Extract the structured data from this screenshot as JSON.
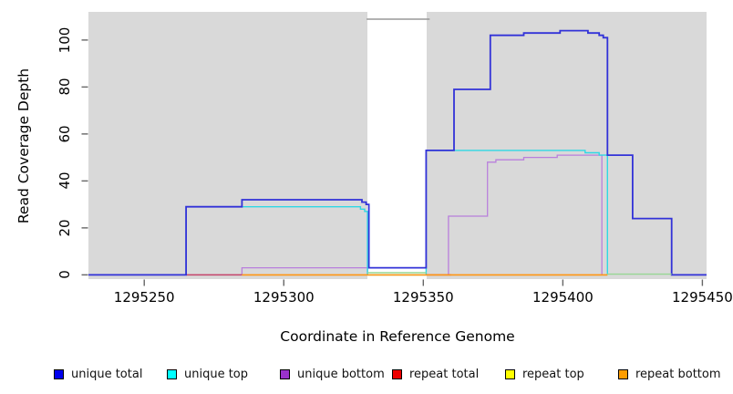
{
  "chart_data": {
    "type": "line",
    "subtype": "step-coverage",
    "title": "",
    "xlabel": "Coordinate in Reference Genome",
    "ylabel": "Read Coverage Depth",
    "xlim": [
      1295230,
      1295451.5
    ],
    "ylim": [
      -1.8,
      112
    ],
    "x_ticks": [
      1295250,
      1295300,
      1295350,
      1295400,
      1295450
    ],
    "y_ticks": [
      0,
      20,
      40,
      60,
      80,
      100
    ],
    "panel_background": "#d9d9d9",
    "gap_region": {
      "start": 1295330,
      "end": 1295351.3,
      "top_border_color": "#999999"
    },
    "grid": false,
    "legend_position": "bottom",
    "series": [
      {
        "name": "unique bottom left",
        "legend": "unique bottom",
        "color": "#b97fdc",
        "width": 1.3,
        "points": [
          [
            1295285,
            0
          ],
          [
            1295285,
            3
          ],
          [
            1295330,
            3
          ],
          [
            1295330,
            0
          ]
        ]
      },
      {
        "name": "unique bottom right",
        "legend": "unique bottom",
        "color": "#b97fdc",
        "width": 1.3,
        "points": [
          [
            1295359,
            0
          ],
          [
            1295359,
            25
          ],
          [
            1295373,
            25
          ],
          [
            1295373,
            48
          ],
          [
            1295376,
            48
          ],
          [
            1295376,
            49
          ],
          [
            1295386,
            49
          ],
          [
            1295386,
            50
          ],
          [
            1295398,
            50
          ],
          [
            1295398,
            51
          ],
          [
            1295414,
            51
          ],
          [
            1295414,
            0
          ]
        ]
      },
      {
        "name": "unique top",
        "legend": "unique top",
        "color": "#2fd8e4",
        "width": 1.4,
        "points": [
          [
            1295265,
            0
          ],
          [
            1295265,
            29
          ],
          [
            1295327.5,
            29
          ],
          [
            1295327.5,
            28
          ],
          [
            1295329,
            28
          ],
          [
            1295329,
            27
          ],
          [
            1295330,
            27
          ],
          [
            1295330,
            0
          ],
          [
            1295351,
            0
          ],
          [
            1295351,
            53
          ],
          [
            1295408,
            53
          ],
          [
            1295408,
            52
          ],
          [
            1295413,
            52
          ],
          [
            1295413,
            51
          ],
          [
            1295416,
            51
          ],
          [
            1295416,
            0
          ]
        ]
      },
      {
        "name": "repeat total seg1",
        "legend": "repeat total",
        "color": "#c4436a",
        "width": 1.5,
        "points": [
          [
            1295265,
            0
          ],
          [
            1295285,
            0
          ]
        ]
      },
      {
        "name": "repeat total seg2",
        "legend": "repeat total",
        "color": "#c4436a",
        "width": 1.5,
        "points": [
          [
            1295351,
            0
          ],
          [
            1295360,
            0
          ]
        ]
      },
      {
        "name": "repeat bottom",
        "legend": "repeat bottom",
        "color": "#ff9612",
        "width": 1.6,
        "points": [
          [
            1295285,
            0
          ],
          [
            1295416,
            0
          ]
        ]
      },
      {
        "name": "unique total",
        "legend": "unique total",
        "color": "#3232d8",
        "width": 1.8,
        "points": [
          [
            1295230,
            0
          ],
          [
            1295265,
            0
          ],
          [
            1295265,
            29
          ],
          [
            1295285,
            29
          ],
          [
            1295285,
            32
          ],
          [
            1295328,
            32
          ],
          [
            1295328,
            31
          ],
          [
            1295329.5,
            31
          ],
          [
            1295329.5,
            30
          ],
          [
            1295330.5,
            30
          ],
          [
            1295330.5,
            3
          ],
          [
            1295351,
            3
          ],
          [
            1295351,
            53
          ],
          [
            1295361,
            53
          ],
          [
            1295361,
            79
          ],
          [
            1295374,
            79
          ],
          [
            1295374,
            102
          ],
          [
            1295386,
            102
          ],
          [
            1295386,
            103
          ],
          [
            1295399,
            103
          ],
          [
            1295399,
            104
          ],
          [
            1295409,
            104
          ],
          [
            1295409,
            103
          ],
          [
            1295413,
            103
          ],
          [
            1295413,
            102
          ],
          [
            1295414.5,
            102
          ],
          [
            1295414.5,
            101
          ],
          [
            1295416,
            101
          ],
          [
            1295416,
            51
          ],
          [
            1295425,
            51
          ],
          [
            1295425,
            24
          ],
          [
            1295439,
            24
          ],
          [
            1295439,
            0
          ],
          [
            1295451.5,
            0
          ]
        ]
      },
      {
        "name": "top-at-zero blend gap",
        "legend": "",
        "color": "#97d793",
        "width": 1.4,
        "points": [
          [
            1295330,
            0.9
          ],
          [
            1295351,
            0.9
          ]
        ]
      },
      {
        "name": "top-at-zero blend right",
        "legend": "",
        "color": "#97d793",
        "width": 1.4,
        "points": [
          [
            1295416,
            0.3
          ],
          [
            1295439,
            0.3
          ]
        ]
      }
    ],
    "tick_color": "#666666"
  },
  "legend": {
    "items": [
      {
        "label": "unique total",
        "color": "#0000ee"
      },
      {
        "label": "unique top",
        "color": "#00ffff"
      },
      {
        "label": "unique bottom",
        "color": "#9932cc"
      },
      {
        "label": "repeat total",
        "color": "#ee0000"
      },
      {
        "label": "repeat top",
        "color": "#ffff00"
      },
      {
        "label": "repeat bottom",
        "color": "#ff9d00"
      }
    ]
  }
}
